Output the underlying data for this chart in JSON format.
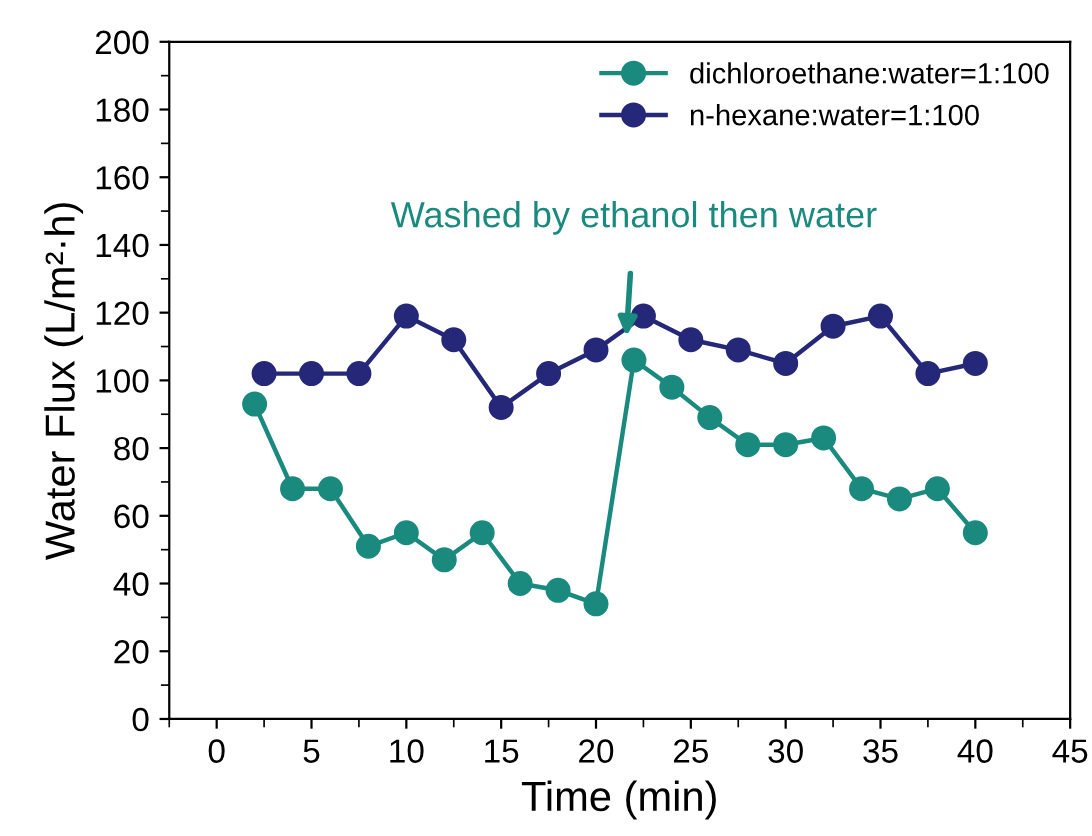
{
  "chart_data": {
    "type": "line",
    "xlabel": "Time (min)",
    "ylabel": "Water Flux (L/m²·h)",
    "xlim": [
      -2.5,
      45
    ],
    "xticks": [
      0,
      5,
      10,
      15,
      20,
      25,
      30,
      35,
      40,
      45
    ],
    "ylim": [
      0,
      200
    ],
    "yticks": [
      0,
      20,
      40,
      60,
      80,
      100,
      120,
      140,
      160,
      180,
      200
    ],
    "grid": false,
    "legend": "top right",
    "marker": "circle",
    "line_style": "solid",
    "series": [
      {
        "name": "dichloroethane:water=1:100",
        "color": "#1a8a7e",
        "x": [
          2,
          4,
          6,
          8,
          10,
          12,
          14,
          16,
          18,
          20,
          22,
          24,
          26,
          28,
          30,
          32,
          34,
          36,
          38,
          40
        ],
        "values": [
          93,
          68,
          68,
          51,
          55,
          47,
          55,
          40,
          38,
          34,
          106,
          98,
          89,
          81,
          81,
          83,
          68,
          65,
          68,
          55
        ]
      },
      {
        "name": "n-hexane:water=1:100",
        "color": "#252878",
        "x": [
          2.5,
          5,
          7.5,
          10,
          12.5,
          15,
          17.5,
          20,
          22.5,
          25,
          27.5,
          30,
          32.5,
          35,
          37.5,
          40
        ],
        "values": [
          102,
          102,
          102,
          119,
          112,
          92,
          102,
          109,
          119,
          112,
          109,
          105,
          116,
          119,
          102,
          105
        ]
      }
    ],
    "annotations": [
      {
        "text": "Washed by ethanol then water",
        "x": 21.6,
        "y": 113
      }
    ]
  }
}
